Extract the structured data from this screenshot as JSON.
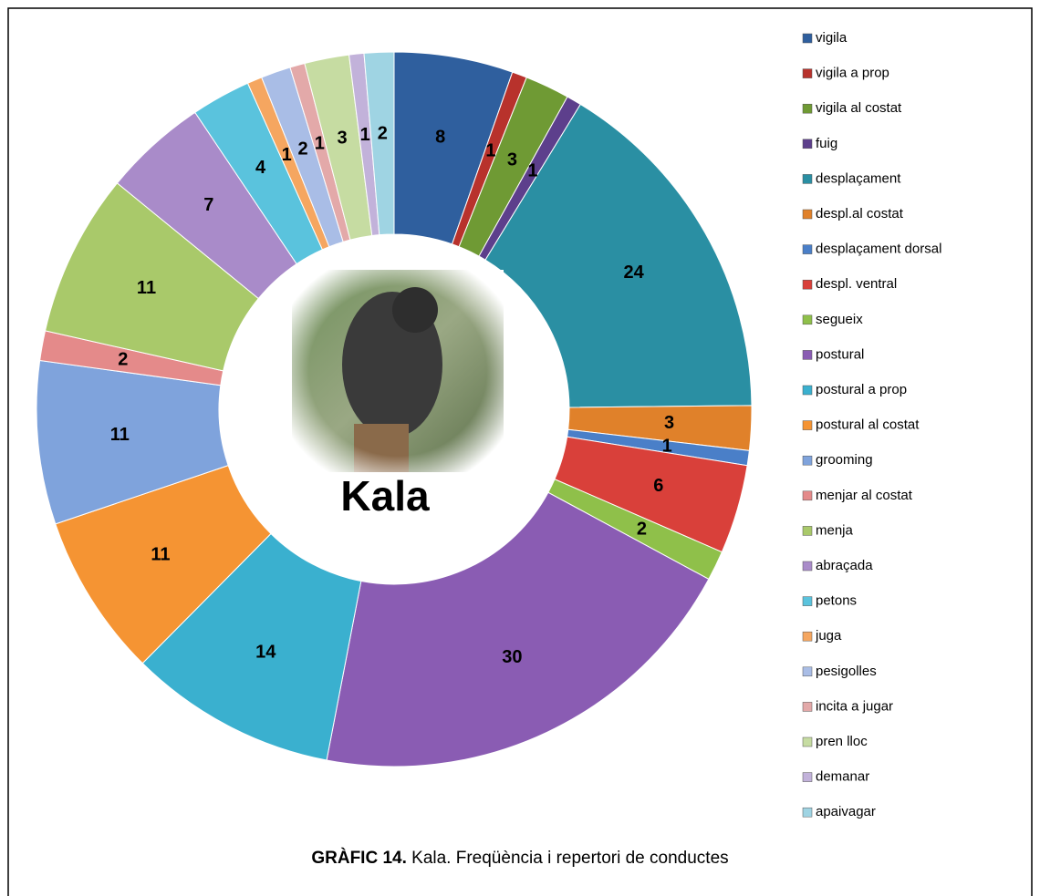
{
  "chart_data": {
    "type": "donut",
    "center_label": "Kala",
    "caption_label": "GRÀFIC 14.",
    "caption": "Kala. Freqüència i repertori de conductes",
    "categories": [
      "vigila",
      "vigila a prop",
      "vigila al costat",
      "fuig",
      "desplaçament",
      "despl.al costat",
      "desplaçament dorsal",
      "despl. ventral",
      "segueix",
      "postural",
      "postural a prop",
      "postural al costat",
      "grooming",
      "menjar al costat",
      "menja",
      "abraçada",
      "petons",
      "juga",
      "pesigolles",
      "incita a jugar",
      "pren lloc",
      "demanar",
      "apaivagar"
    ],
    "values": [
      8,
      1,
      3,
      1,
      24,
      3,
      1,
      6,
      2,
      30,
      14,
      11,
      11,
      2,
      11,
      7,
      4,
      1,
      2,
      1,
      3,
      1,
      2
    ],
    "colors": [
      "#2f5f9e",
      "#b8322c",
      "#6f9a34",
      "#5d3f8c",
      "#2a8fa3",
      "#e0812a",
      "#4a7fc8",
      "#d9403a",
      "#8fc04a",
      "#8a5cb3",
      "#3ab0cf",
      "#f59433",
      "#7fa3dc",
      "#e48a8a",
      "#a9c96a",
      "#a98bc9",
      "#5ac3dd",
      "#f5a660",
      "#a9bde6",
      "#e3a9a9",
      "#c6dca2",
      "#c2b2da",
      "#9fd4e3"
    ],
    "legend": "right"
  }
}
